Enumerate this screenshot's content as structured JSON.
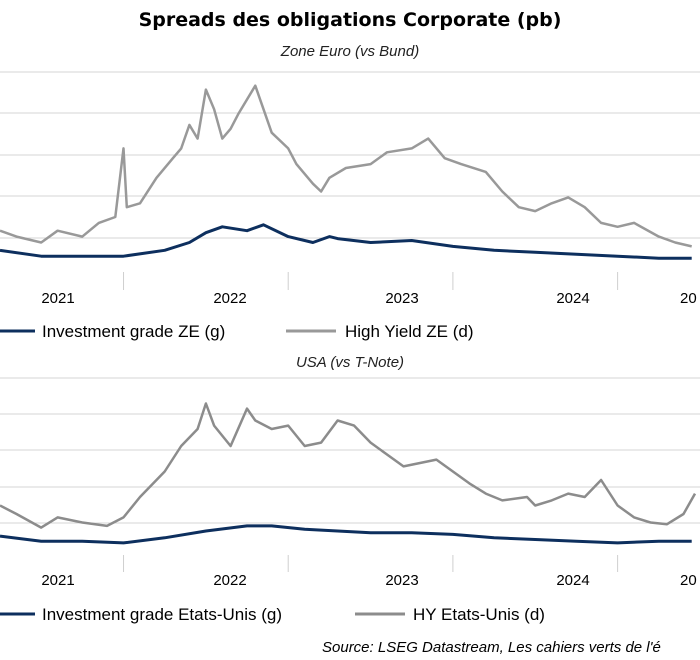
{
  "title": "Spreads des obligations Corporate (pb)",
  "source": "Source: LSEG Datastream, Les cahiers verts de l'é",
  "chart_data": [
    {
      "type": "line",
      "subtitle": "Zone Euro (vs Bund)",
      "x_tick_labels": [
        "2021",
        "2022",
        "2023",
        "2024",
        "20"
      ],
      "gridlines": true,
      "legend_position": "bottom",
      "series": [
        {
          "name": "Investment grade ZE (g)",
          "color": "#0d2f5e",
          "x": [
            2020.75,
            2021.0,
            2021.25,
            2021.5,
            2021.75,
            2021.9,
            2022.0,
            2022.1,
            2022.25,
            2022.35,
            2022.5,
            2022.65,
            2022.75,
            2022.8,
            2023.0,
            2023.25,
            2023.5,
            2023.75,
            2024.0,
            2024.25,
            2024.5,
            2024.75,
            2024.95
          ],
          "y": [
            0.08,
            0.05,
            0.05,
            0.05,
            0.08,
            0.12,
            0.17,
            0.2,
            0.18,
            0.21,
            0.15,
            0.12,
            0.15,
            0.14,
            0.12,
            0.13,
            0.1,
            0.08,
            0.07,
            0.06,
            0.05,
            0.04,
            0.04
          ]
        },
        {
          "name": "High Yield ZE (d)",
          "color": "#999999",
          "x": [
            2020.75,
            2020.85,
            2021.0,
            2021.1,
            2021.25,
            2021.35,
            2021.45,
            2021.5,
            2021.52,
            2021.6,
            2021.7,
            2021.8,
            2021.85,
            2021.9,
            2021.95,
            2022.0,
            2022.05,
            2022.1,
            2022.15,
            2022.2,
            2022.3,
            2022.35,
            2022.4,
            2022.5,
            2022.55,
            2022.65,
            2022.7,
            2022.75,
            2022.85,
            2023.0,
            2023.1,
            2023.25,
            2023.35,
            2023.45,
            2023.55,
            2023.7,
            2023.8,
            2023.9,
            2024.0,
            2024.1,
            2024.2,
            2024.3,
            2024.4,
            2024.5,
            2024.6,
            2024.75,
            2024.85,
            2024.95
          ],
          "y": [
            0.18,
            0.15,
            0.12,
            0.18,
            0.15,
            0.22,
            0.25,
            0.6,
            0.3,
            0.32,
            0.45,
            0.55,
            0.6,
            0.72,
            0.65,
            0.9,
            0.8,
            0.65,
            0.7,
            0.78,
            0.92,
            0.8,
            0.68,
            0.6,
            0.52,
            0.42,
            0.38,
            0.45,
            0.5,
            0.52,
            0.58,
            0.6,
            0.65,
            0.55,
            0.52,
            0.48,
            0.38,
            0.3,
            0.28,
            0.32,
            0.35,
            0.3,
            0.22,
            0.2,
            0.22,
            0.15,
            0.12,
            0.1
          ]
        }
      ]
    },
    {
      "type": "line",
      "subtitle": "USA (vs T-Note)",
      "x_tick_labels": [
        "2021",
        "2022",
        "2023",
        "2024",
        "20"
      ],
      "gridlines": true,
      "legend_position": "bottom",
      "series": [
        {
          "name": "Investment grade Etats-Unis (g)",
          "color": "#0d2f5e",
          "x": [
            2020.75,
            2021.0,
            2021.25,
            2021.5,
            2021.75,
            2022.0,
            2022.25,
            2022.4,
            2022.6,
            2022.8,
            2023.0,
            2023.25,
            2023.5,
            2023.75,
            2024.0,
            2024.25,
            2024.5,
            2024.75,
            2024.95
          ],
          "y": [
            0.07,
            0.04,
            0.04,
            0.03,
            0.06,
            0.1,
            0.13,
            0.13,
            0.11,
            0.1,
            0.09,
            0.09,
            0.08,
            0.06,
            0.05,
            0.04,
            0.03,
            0.04,
            0.04
          ]
        },
        {
          "name": "HY Etats-Unis (d)",
          "color": "#8c8c8c",
          "x": [
            2020.75,
            2020.85,
            2021.0,
            2021.1,
            2021.25,
            2021.4,
            2021.5,
            2021.6,
            2021.75,
            2021.85,
            2021.95,
            2022.0,
            2022.05,
            2022.15,
            2022.25,
            2022.3,
            2022.4,
            2022.5,
            2022.6,
            2022.7,
            2022.8,
            2022.9,
            2023.0,
            2023.1,
            2023.2,
            2023.3,
            2023.4,
            2023.5,
            2023.6,
            2023.7,
            2023.8,
            2023.95,
            2024.0,
            2024.1,
            2024.2,
            2024.3,
            2024.4,
            2024.5,
            2024.6,
            2024.7,
            2024.8,
            2024.9,
            2024.97
          ],
          "y": [
            0.25,
            0.2,
            0.12,
            0.18,
            0.15,
            0.13,
            0.18,
            0.3,
            0.45,
            0.6,
            0.7,
            0.85,
            0.72,
            0.6,
            0.82,
            0.75,
            0.7,
            0.72,
            0.6,
            0.62,
            0.75,
            0.72,
            0.62,
            0.55,
            0.48,
            0.5,
            0.52,
            0.45,
            0.38,
            0.32,
            0.28,
            0.3,
            0.25,
            0.28,
            0.32,
            0.3,
            0.4,
            0.25,
            0.18,
            0.15,
            0.14,
            0.2,
            0.32
          ]
        }
      ]
    }
  ]
}
